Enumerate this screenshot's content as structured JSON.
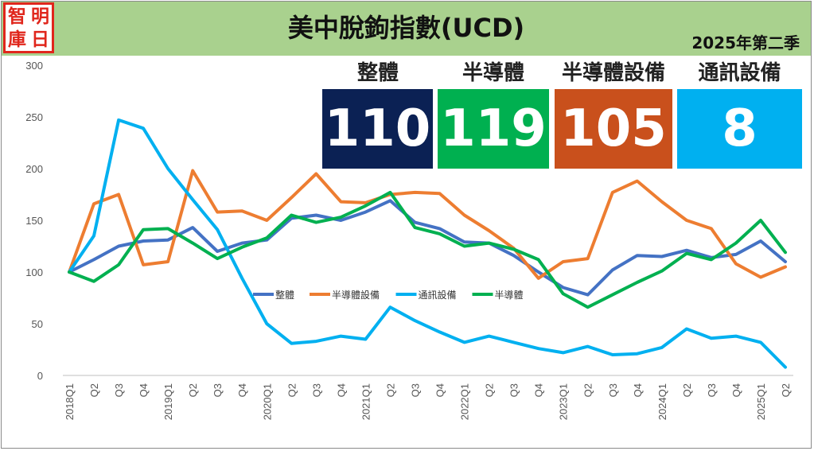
{
  "title": "美中脫鉤指數(UCD)",
  "period": "2025年第二季",
  "logo": {
    "chars": [
      "智",
      "明",
      "庫",
      "日"
    ]
  },
  "cards": [
    {
      "label": "整體",
      "value": "110",
      "color": "#0b2154"
    },
    {
      "label": "半導體",
      "value": "119",
      "color": "#00b050"
    },
    {
      "label": "半導體設備",
      "value": "105",
      "color": "#c9501c"
    },
    {
      "label": "通訊設備",
      "value": "8",
      "color": "#00b0f0"
    }
  ],
  "chart_data": {
    "type": "line",
    "categories": [
      "2018Q1",
      "Q2",
      "Q3",
      "Q4",
      "2019Q1",
      "Q2",
      "Q3",
      "Q4",
      "2020Q1",
      "Q2",
      "Q3",
      "Q4",
      "2021Q1",
      "Q2",
      "Q3",
      "Q4",
      "2022Q1",
      "Q2",
      "Q3",
      "Q4",
      "2023Q1",
      "Q2",
      "Q3",
      "Q4",
      "2024Q1",
      "Q2",
      "Q3",
      "Q4",
      "2025Q1",
      "Q2"
    ],
    "ylim": [
      0,
      300
    ],
    "yticks": [
      "0",
      "50",
      "100",
      "150",
      "200",
      "250",
      "300"
    ],
    "grid": false,
    "legend": "center",
    "series": [
      {
        "name": "整體",
        "color": "#4472c4",
        "values": [
          100,
          112,
          125,
          130,
          131,
          143,
          120,
          128,
          131,
          152,
          155,
          150,
          158,
          169,
          148,
          142,
          129,
          128,
          116,
          100,
          85,
          78,
          102,
          116,
          115,
          121,
          114,
          117,
          130,
          110
        ]
      },
      {
        "name": "半導體設備",
        "color": "#ed7d31",
        "values": [
          100,
          166,
          175,
          107,
          110,
          198,
          158,
          159,
          150,
          172,
          195,
          168,
          167,
          175,
          177,
          176,
          155,
          140,
          123,
          94,
          110,
          113,
          177,
          188,
          168,
          150,
          142,
          108,
          95,
          105
        ]
      },
      {
        "name": "通訊設備",
        "color": "#00b0f0",
        "values": [
          100,
          135,
          247,
          239,
          200,
          170,
          141,
          94,
          50,
          31,
          33,
          38,
          35,
          66,
          53,
          42,
          32,
          38,
          32,
          26,
          22,
          28,
          20,
          21,
          27,
          45,
          36,
          38,
          32,
          8
        ]
      },
      {
        "name": "半導體",
        "color": "#00b050",
        "values": [
          100,
          91,
          107,
          141,
          142,
          128,
          113,
          124,
          133,
          155,
          148,
          153,
          164,
          177,
          143,
          137,
          125,
          128,
          122,
          112,
          79,
          66,
          78,
          90,
          101,
          118,
          112,
          128,
          150,
          119
        ]
      }
    ]
  }
}
